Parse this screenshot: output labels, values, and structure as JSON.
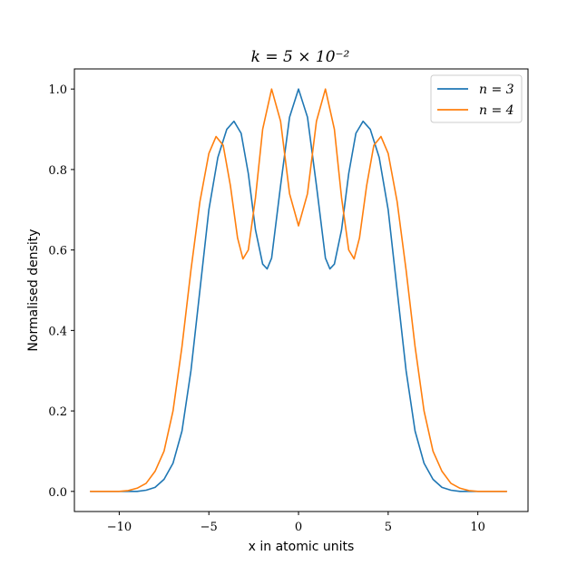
{
  "chart_data": {
    "type": "line",
    "title": "k = 5 × 10⁻²",
    "xlabel": "x in atomic units",
    "ylabel": "Normalised density",
    "xlim": [
      -12.5,
      12.8
    ],
    "ylim": [
      -0.05,
      1.05
    ],
    "x_ticks": [
      -10,
      -5,
      0,
      5,
      10
    ],
    "x_tick_labels": [
      "−10",
      "−5",
      "0",
      "5",
      "10"
    ],
    "y_ticks": [
      0.0,
      0.2,
      0.4,
      0.6,
      0.8,
      1.0
    ],
    "y_tick_labels": [
      "0.0",
      "0.2",
      "0.4",
      "0.6",
      "0.8",
      "1.0"
    ],
    "grid": false,
    "legend_position": "top-right",
    "series": [
      {
        "name": "n = 3",
        "color": "#1f77b4",
        "points": [
          [
            -11.6,
            0.0
          ],
          [
            -10.0,
            0.0
          ],
          [
            -9.0,
            0.0
          ],
          [
            -8.5,
            0.003
          ],
          [
            -8.0,
            0.01
          ],
          [
            -7.5,
            0.03
          ],
          [
            -7.0,
            0.07
          ],
          [
            -6.5,
            0.15
          ],
          [
            -6.0,
            0.3
          ],
          [
            -5.5,
            0.5
          ],
          [
            -5.0,
            0.7
          ],
          [
            -4.5,
            0.83
          ],
          [
            -4.0,
            0.9
          ],
          [
            -3.6,
            0.92
          ],
          [
            -3.2,
            0.89
          ],
          [
            -2.8,
            0.79
          ],
          [
            -2.4,
            0.65
          ],
          [
            -2.0,
            0.565
          ],
          [
            -1.75,
            0.553
          ],
          [
            -1.5,
            0.58
          ],
          [
            -1.0,
            0.76
          ],
          [
            -0.5,
            0.93
          ],
          [
            0.0,
            1.0
          ],
          [
            0.5,
            0.93
          ],
          [
            1.0,
            0.76
          ],
          [
            1.5,
            0.58
          ],
          [
            1.75,
            0.553
          ],
          [
            2.0,
            0.565
          ],
          [
            2.4,
            0.65
          ],
          [
            2.8,
            0.79
          ],
          [
            3.2,
            0.89
          ],
          [
            3.6,
            0.92
          ],
          [
            4.0,
            0.9
          ],
          [
            4.5,
            0.83
          ],
          [
            5.0,
            0.7
          ],
          [
            5.5,
            0.5
          ],
          [
            6.0,
            0.3
          ],
          [
            6.5,
            0.15
          ],
          [
            7.0,
            0.07
          ],
          [
            7.5,
            0.03
          ],
          [
            8.0,
            0.01
          ],
          [
            8.5,
            0.003
          ],
          [
            9.0,
            0.0
          ],
          [
            10.0,
            0.0
          ],
          [
            11.6,
            0.0
          ]
        ]
      },
      {
        "name": "n = 4",
        "color": "#ff7f0e",
        "points": [
          [
            -11.6,
            0.0
          ],
          [
            -10.0,
            0.0
          ],
          [
            -9.5,
            0.002
          ],
          [
            -9.0,
            0.008
          ],
          [
            -8.5,
            0.02
          ],
          [
            -8.0,
            0.05
          ],
          [
            -7.5,
            0.1
          ],
          [
            -7.0,
            0.2
          ],
          [
            -6.5,
            0.36
          ],
          [
            -6.0,
            0.55
          ],
          [
            -5.5,
            0.72
          ],
          [
            -5.0,
            0.84
          ],
          [
            -4.6,
            0.882
          ],
          [
            -4.2,
            0.86
          ],
          [
            -3.8,
            0.76
          ],
          [
            -3.4,
            0.63
          ],
          [
            -3.1,
            0.578
          ],
          [
            -2.8,
            0.6
          ],
          [
            -2.4,
            0.73
          ],
          [
            -2.0,
            0.9
          ],
          [
            -1.5,
            1.0
          ],
          [
            -1.0,
            0.92
          ],
          [
            -0.5,
            0.74
          ],
          [
            0.0,
            0.66
          ],
          [
            0.5,
            0.74
          ],
          [
            1.0,
            0.92
          ],
          [
            1.5,
            1.0
          ],
          [
            2.0,
            0.9
          ],
          [
            2.4,
            0.73
          ],
          [
            2.8,
            0.6
          ],
          [
            3.1,
            0.578
          ],
          [
            3.4,
            0.63
          ],
          [
            3.8,
            0.76
          ],
          [
            4.2,
            0.86
          ],
          [
            4.6,
            0.882
          ],
          [
            5.0,
            0.84
          ],
          [
            5.5,
            0.72
          ],
          [
            6.0,
            0.55
          ],
          [
            6.5,
            0.36
          ],
          [
            7.0,
            0.2
          ],
          [
            7.5,
            0.1
          ],
          [
            8.0,
            0.05
          ],
          [
            8.5,
            0.02
          ],
          [
            9.0,
            0.008
          ],
          [
            9.5,
            0.002
          ],
          [
            10.0,
            0.0
          ],
          [
            11.6,
            0.0
          ]
        ]
      }
    ]
  }
}
